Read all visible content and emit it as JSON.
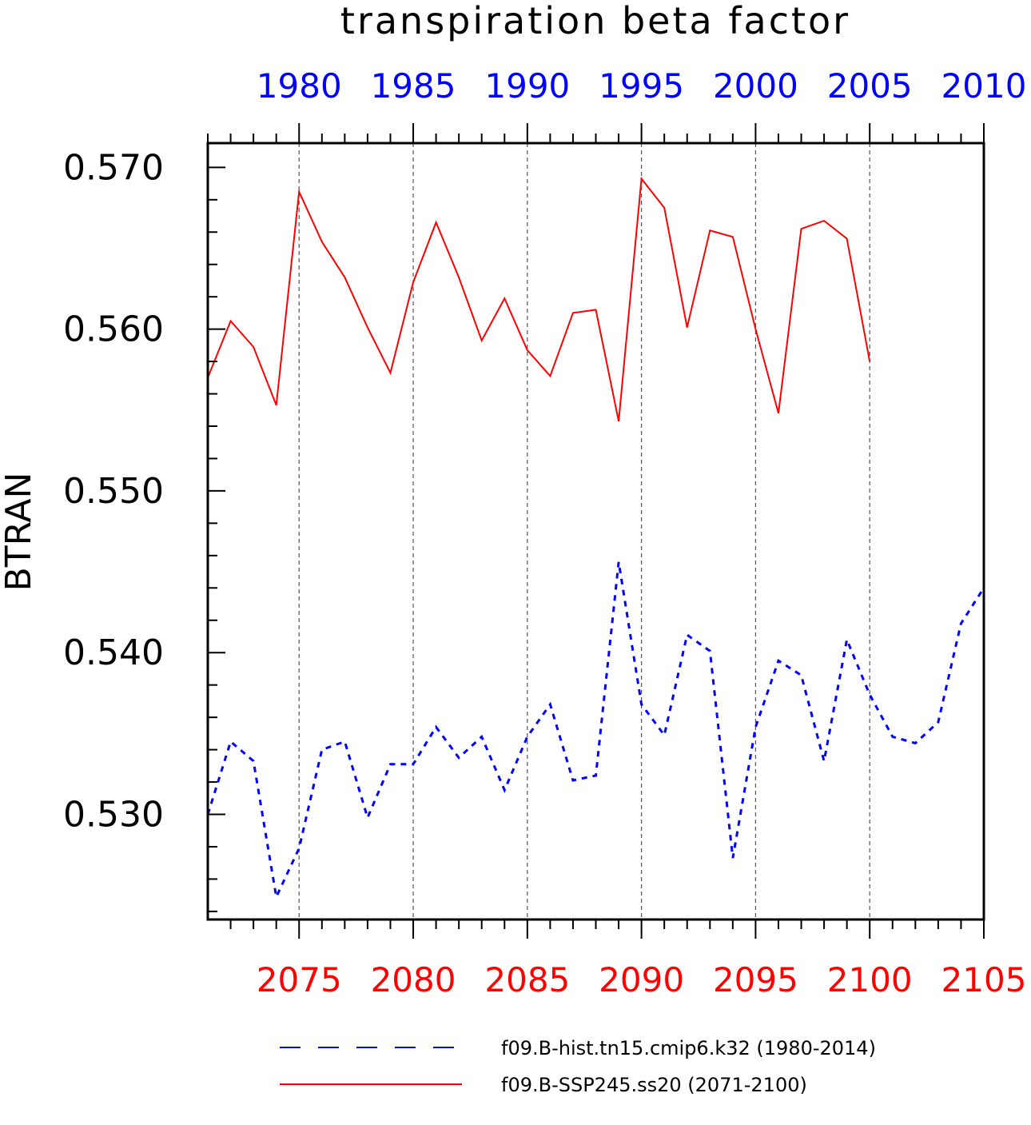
{
  "chart_data": {
    "type": "line",
    "title": "transpiration beta factor",
    "ylabel": "BTRAN",
    "ylim": [
      0.5235,
      0.5715
    ],
    "y_ticks": [
      "0.530",
      "0.540",
      "0.550",
      "0.560",
      "0.570"
    ],
    "grid": "vertical dashed",
    "legend_position": "bottom",
    "top_axis": {
      "color": "#0000ff",
      "range": [
        1976,
        2010
      ],
      "tick_labels": [
        "1980",
        "1985",
        "1990",
        "1995",
        "2000",
        "2005",
        "2010"
      ]
    },
    "bottom_axis": {
      "color": "#ff0000",
      "range": [
        2071,
        2105
      ],
      "tick_labels": [
        "2075",
        "2080",
        "2085",
        "2090",
        "2095",
        "2100",
        "2105"
      ]
    },
    "series": [
      {
        "name": "f09.B-hist.tn15.cmip6.k32 (1980-2014)",
        "color": "#0000ff",
        "style": "dashed",
        "axis": "top",
        "x": [
          1976,
          1977,
          1978,
          1979,
          1980,
          1981,
          1982,
          1983,
          1984,
          1985,
          1986,
          1987,
          1988,
          1989,
          1990,
          1991,
          1992,
          1993,
          1994,
          1995,
          1996,
          1997,
          1998,
          1999,
          2000,
          2001,
          2002,
          2003,
          2004,
          2005,
          2006,
          2007,
          2008,
          2009,
          2010
        ],
        "values": [
          0.53,
          0.5345,
          0.5333,
          0.5249,
          0.5279,
          0.534,
          0.5345,
          0.5298,
          0.5331,
          0.5331,
          0.5354,
          0.5335,
          0.5348,
          0.5315,
          0.5348,
          0.5368,
          0.5321,
          0.5324,
          0.5456,
          0.5368,
          0.5349,
          0.5411,
          0.5401,
          0.5273,
          0.5354,
          0.5395,
          0.5386,
          0.5333,
          0.5408,
          0.5374,
          0.5348,
          0.5344,
          0.5357,
          0.5418,
          0.544
        ]
      },
      {
        "name": "f09.B-SSP245.ss20 (2071-2100)",
        "color": "#ff0000",
        "style": "solid",
        "axis": "bottom",
        "x": [
          2071,
          2072,
          2073,
          2074,
          2075,
          2076,
          2077,
          2078,
          2079,
          2080,
          2081,
          2082,
          2083,
          2084,
          2085,
          2086,
          2087,
          2088,
          2089,
          2090,
          2091,
          2092,
          2093,
          2094,
          2095,
          2096,
          2097,
          2098,
          2099,
          2100
        ],
        "values": [
          0.557,
          0.5605,
          0.5589,
          0.5553,
          0.5685,
          0.5654,
          0.5632,
          0.5601,
          0.5573,
          0.5629,
          0.5666,
          0.5632,
          0.5593,
          0.5619,
          0.5587,
          0.5571,
          0.561,
          0.5612,
          0.5543,
          0.5693,
          0.5675,
          0.5601,
          0.5661,
          0.5657,
          0.56,
          0.5548,
          0.5662,
          0.5667,
          0.5656,
          0.558
        ]
      }
    ]
  }
}
